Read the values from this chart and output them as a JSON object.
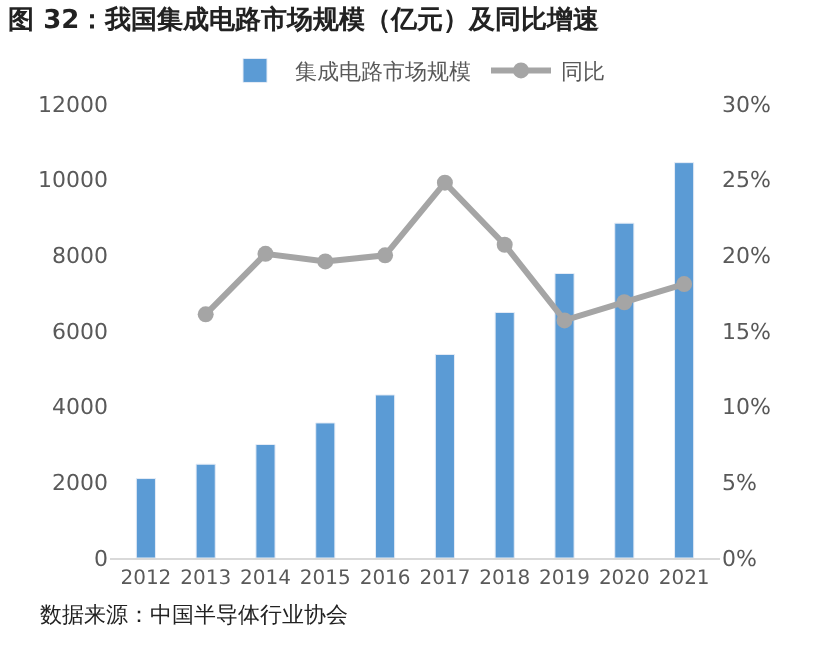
{
  "chart_data": {
    "type": "bar",
    "title": "图 32：我国集成电路市场规模（亿元）及同比增速",
    "categories": [
      "2012",
      "2013",
      "2014",
      "2015",
      "2016",
      "2017",
      "2018",
      "2019",
      "2020",
      "2021"
    ],
    "series": [
      {
        "name": "集成电路市场规模",
        "color": "#5b9bd5",
        "values": [
          2100,
          2480,
          3000,
          3570,
          4310,
          5380,
          6490,
          7520,
          8850,
          10450
        ]
      },
      {
        "name": "同比",
        "type": "line",
        "axis": "y2",
        "color": "#a5a5a5",
        "marker": "circle",
        "values": [
          null,
          16.1,
          20.1,
          19.6,
          20.0,
          24.8,
          20.7,
          15.7,
          16.9,
          18.1
        ]
      }
    ],
    "ylim": [
      0,
      12000
    ],
    "yticks": [
      0,
      2000,
      4000,
      6000,
      8000,
      10000,
      12000
    ],
    "y2lim": [
      0,
      30
    ],
    "y2ticks": [
      {
        "value": 0,
        "label": "0%"
      },
      {
        "value": 5,
        "label": "5%"
      },
      {
        "value": 10,
        "label": "10%"
      },
      {
        "value": 15,
        "label": "15%"
      },
      {
        "value": 20,
        "label": "20%"
      },
      {
        "value": 25,
        "label": "25%"
      },
      {
        "value": 30,
        "label": "30%"
      }
    ],
    "legend": "top",
    "annotations": [
      "数据来源：中国半导体行业协会"
    ]
  }
}
